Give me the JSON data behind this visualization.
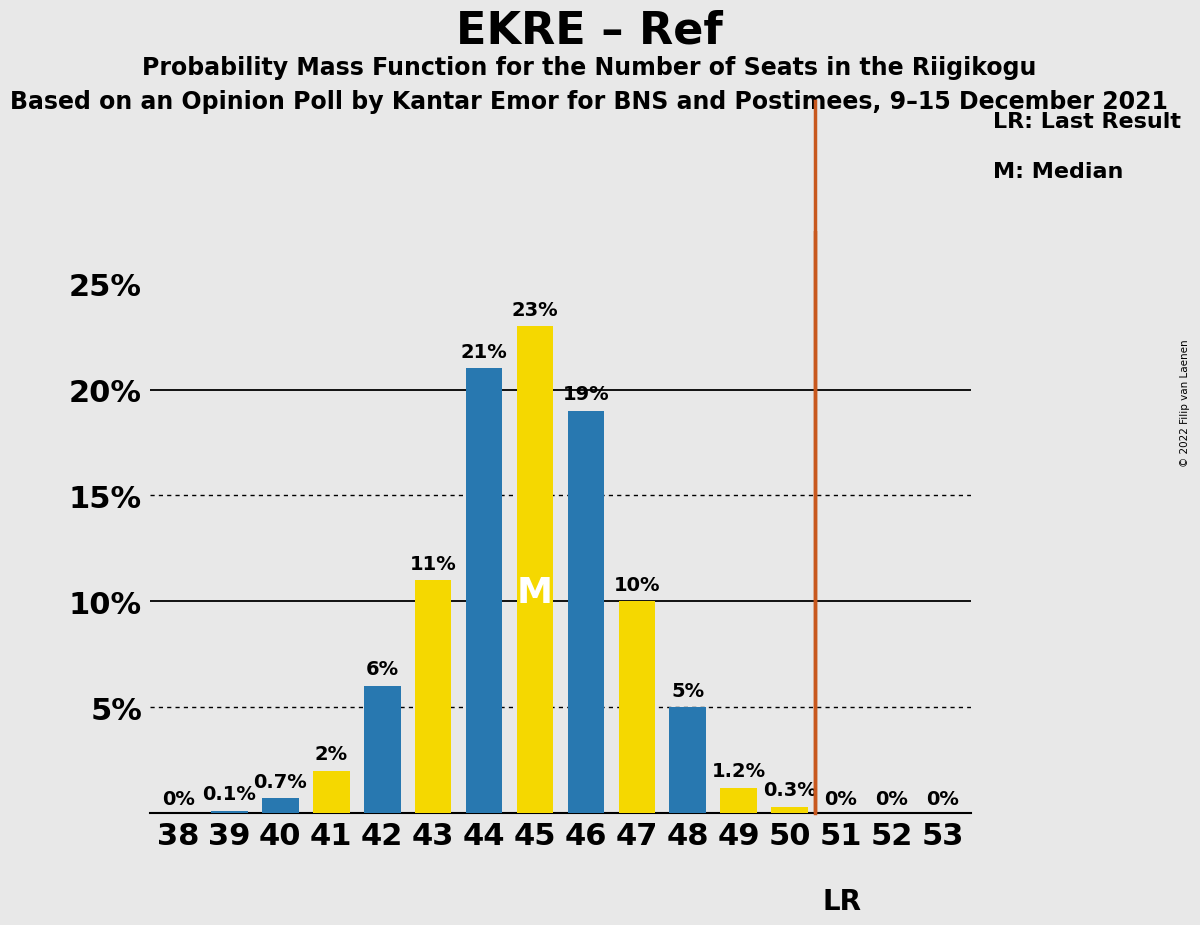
{
  "title": "EKRE – Ref",
  "subtitle1": "Probability Mass Function for the Number of Seats in the Riigikogu",
  "subtitle2": "Based on an Opinion Poll by Kantar Emor for BNS and Postimees, 9–15 December 2021",
  "copyright": "© 2022 Filip van Laenen",
  "seats": [
    38,
    39,
    40,
    41,
    42,
    43,
    44,
    45,
    46,
    47,
    48,
    49,
    50,
    51,
    52,
    53
  ],
  "probabilities": [
    0.0,
    0.1,
    0.7,
    2.0,
    6.0,
    11.0,
    21.0,
    23.0,
    19.0,
    10.0,
    5.0,
    1.2,
    0.3,
    0.0,
    0.0,
    0.0
  ],
  "bar_colors": [
    "#2878b0",
    "#2878b0",
    "#2878b0",
    "#f5d800",
    "#2878b0",
    "#f5d800",
    "#2878b0",
    "#f5d800",
    "#2878b0",
    "#f5d800",
    "#2878b0",
    "#f5d800",
    "#f5d800",
    "#2878b0",
    "#2878b0",
    "#2878b0"
  ],
  "median_seat": 45,
  "lr_seat": 51,
  "legend_lr": "LR: Last Result",
  "legend_m": "M: Median",
  "solid_gridlines": [
    10.0,
    20.0
  ],
  "dotted_gridlines": [
    5.0,
    15.0
  ],
  "bg_color": "#e8e8e8",
  "bar_blue": "#2878b0",
  "bar_yellow": "#f5d800",
  "lr_line_color": "#c8581e",
  "title_size": 32,
  "subtitle_size": 17,
  "annot_size": 14,
  "axis_label_size": 22,
  "ytick_labels": [
    "",
    "5%",
    "10%",
    "15%",
    "20%",
    "25%"
  ],
  "ylim_max": 27.5,
  "bar_width": 0.72
}
